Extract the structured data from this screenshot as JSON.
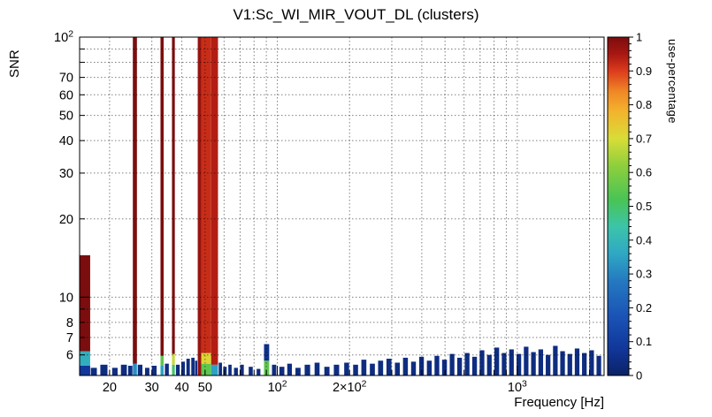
{
  "chart_data": {
    "type": "heatmap",
    "title": "V1:Sc_WI_MIR_VOUT_DL (clusters)",
    "xlabel": "Frequency [Hz]",
    "ylabel": "SNR",
    "zlabel": "use-percentage",
    "xscale": "log",
    "yscale": "log",
    "xlim": [
      15,
      2300
    ],
    "ylim": [
      5,
      100
    ],
    "zlim": [
      0,
      1
    ],
    "grid": true,
    "x_ticks": [
      {
        "value": 20,
        "label": "20"
      },
      {
        "value": 30,
        "label": "30"
      },
      {
        "value": 40,
        "label": "40"
      },
      {
        "value": 50,
        "label": "50"
      },
      {
        "value": 100,
        "label": "10^2"
      },
      {
        "value": 200,
        "label": "2×10^2"
      },
      {
        "value": 1000,
        "label": "10^3"
      }
    ],
    "y_ticks": [
      {
        "value": 6,
        "label": "6"
      },
      {
        "value": 7,
        "label": "7"
      },
      {
        "value": 8,
        "label": "8"
      },
      {
        "value": 10,
        "label": "10"
      },
      {
        "value": 20,
        "label": "20"
      },
      {
        "value": 30,
        "label": "30"
      },
      {
        "value": 40,
        "label": "40"
      },
      {
        "value": 50,
        "label": "50"
      },
      {
        "value": 60,
        "label": "60"
      },
      {
        "value": 70,
        "label": "70"
      },
      {
        "value": 100,
        "label": "10^2"
      }
    ],
    "z_ticks": [
      {
        "value": 0,
        "label": "0"
      },
      {
        "value": 0.1,
        "label": "0.1"
      },
      {
        "value": 0.2,
        "label": "0.2"
      },
      {
        "value": 0.3,
        "label": "0.3"
      },
      {
        "value": 0.4,
        "label": "0.4"
      },
      {
        "value": 0.5,
        "label": "0.5"
      },
      {
        "value": 0.6,
        "label": "0.6"
      },
      {
        "value": 0.7,
        "label": "0.7"
      },
      {
        "value": 0.8,
        "label": "0.8"
      },
      {
        "value": 0.9,
        "label": "0.9"
      },
      {
        "value": 1,
        "label": "1"
      }
    ],
    "palette": [
      [
        0.0,
        "#0b2266"
      ],
      [
        0.08,
        "#11379b"
      ],
      [
        0.18,
        "#1b55b7"
      ],
      [
        0.28,
        "#2479c0"
      ],
      [
        0.36,
        "#2fa8c4"
      ],
      [
        0.44,
        "#3cc4a9"
      ],
      [
        0.52,
        "#49c455"
      ],
      [
        0.62,
        "#8ecf3c"
      ],
      [
        0.7,
        "#d8dd38"
      ],
      [
        0.78,
        "#f3b32d"
      ],
      [
        0.84,
        "#ef8726"
      ],
      [
        0.9,
        "#dc3b1c"
      ],
      [
        0.95,
        "#a81712"
      ],
      [
        1.0,
        "#7c0d0e"
      ]
    ],
    "noise_value": 0.04,
    "clusters": [
      {
        "f1": 15.0,
        "f2": 16.6,
        "segs": [
          [
            5.0,
            5.45,
            0.08
          ],
          [
            5.45,
            6.2,
            0.38
          ],
          [
            6.2,
            14.5,
            1.0
          ]
        ]
      },
      {
        "f1": 25.0,
        "f2": 26.0,
        "segs": [
          [
            5.0,
            5.55,
            0.32
          ],
          [
            5.55,
            100,
            1.0
          ]
        ]
      },
      {
        "f1": 32.6,
        "f2": 33.6,
        "segs": [
          [
            5.0,
            5.45,
            0.35
          ],
          [
            5.45,
            5.95,
            0.55
          ],
          [
            5.95,
            100,
            1.0
          ]
        ]
      },
      {
        "f1": 36.4,
        "f2": 37.4,
        "segs": [
          [
            5.0,
            5.5,
            0.5
          ],
          [
            5.5,
            6.05,
            0.68
          ],
          [
            6.05,
            100,
            1.0
          ]
        ]
      },
      {
        "f1": 46.6,
        "f2": 48.2,
        "segs": [
          [
            5.0,
            100,
            0.97
          ]
        ]
      },
      {
        "f1": 48.2,
        "f2": 53.0,
        "segs": [
          [
            5.0,
            5.55,
            0.55
          ],
          [
            5.55,
            6.1,
            0.72
          ],
          [
            6.1,
            100,
            0.92
          ]
        ]
      },
      {
        "f1": 53.0,
        "f2": 56.6,
        "segs": [
          [
            5.0,
            5.5,
            0.35
          ],
          [
            5.5,
            100,
            0.94
          ]
        ]
      },
      {
        "f1": 88.0,
        "f2": 92.5,
        "segs": [
          [
            5.0,
            5.7,
            0.55
          ],
          [
            5.7,
            6.6,
            0.06
          ]
        ]
      }
    ],
    "noise_bars": [
      [
        16.7,
        17.7,
        5.35
      ],
      [
        18.3,
        19.6,
        5.5
      ],
      [
        20.5,
        21.6,
        5.35
      ],
      [
        22.3,
        23.6,
        5.5
      ],
      [
        23.9,
        24.9,
        5.45
      ],
      [
        26.2,
        27.4,
        5.5
      ],
      [
        28.1,
        29.3,
        5.35
      ],
      [
        30.0,
        31.4,
        5.45
      ],
      [
        34.0,
        35.3,
        5.55
      ],
      [
        37.8,
        39.2,
        5.5
      ],
      [
        39.8,
        41.2,
        5.65
      ],
      [
        41.8,
        43.2,
        5.8
      ],
      [
        43.8,
        45.2,
        5.85
      ],
      [
        45.4,
        46.4,
        5.7
      ],
      [
        57.0,
        58.8,
        5.6
      ],
      [
        59.5,
        61.5,
        5.4
      ],
      [
        62.5,
        64.5,
        5.5
      ],
      [
        66.0,
        68.5,
        5.35
      ],
      [
        70.0,
        72.5,
        5.5
      ],
      [
        76.0,
        79.0,
        5.4
      ],
      [
        82.0,
        85.0,
        5.3
      ],
      [
        95.0,
        99.0,
        5.5
      ],
      [
        102,
        107,
        5.4
      ],
      [
        110,
        115,
        5.55
      ],
      [
        119,
        125,
        5.35
      ],
      [
        130,
        137,
        5.5
      ],
      [
        143,
        150,
        5.6
      ],
      [
        157,
        165,
        5.4
      ],
      [
        172,
        181,
        5.5
      ],
      [
        190,
        199,
        5.6
      ],
      [
        207,
        217,
        5.5
      ],
      [
        224,
        235,
        5.75
      ],
      [
        243,
        255,
        5.55
      ],
      [
        263,
        276,
        5.7
      ],
      [
        285,
        299,
        5.8
      ],
      [
        309,
        324,
        5.6
      ],
      [
        334,
        350,
        5.85
      ],
      [
        361,
        378,
        5.65
      ],
      [
        390,
        408,
        5.9
      ],
      [
        420,
        440,
        5.7
      ],
      [
        452,
        473,
        5.95
      ],
      [
        486,
        509,
        5.75
      ],
      [
        523,
        547,
        6.05
      ],
      [
        562,
        588,
        5.85
      ],
      [
        604,
        632,
        6.1
      ],
      [
        649,
        679,
        5.9
      ],
      [
        697,
        729,
        6.25
      ],
      [
        748,
        782,
        6.0
      ],
      [
        803,
        840,
        6.4
      ],
      [
        862,
        901,
        6.1
      ],
      [
        925,
        967,
        6.3
      ],
      [
        993,
        1038,
        6.05
      ],
      [
        1065,
        1113,
        6.45
      ],
      [
        1142,
        1194,
        6.15
      ],
      [
        1225,
        1281,
        6.3
      ],
      [
        1314,
        1374,
        6.0
      ],
      [
        1409,
        1473,
        6.5
      ],
      [
        1510,
        1579,
        6.2
      ],
      [
        1619,
        1693,
        6.05
      ],
      [
        1736,
        1815,
        6.35
      ],
      [
        1861,
        1946,
        6.1
      ],
      [
        1995,
        2086,
        6.25
      ],
      [
        2139,
        2236,
        5.95
      ]
    ]
  }
}
